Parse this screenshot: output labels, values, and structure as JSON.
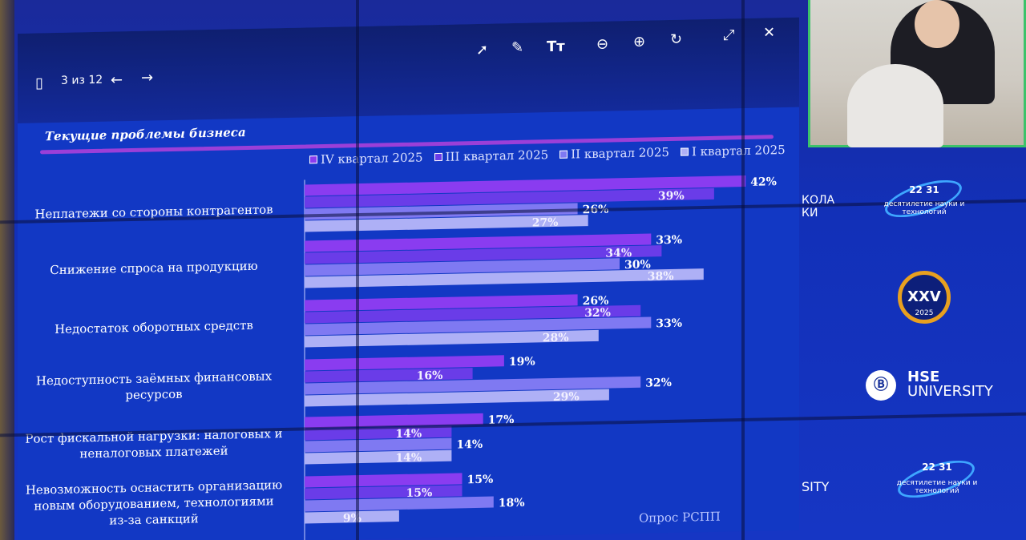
{
  "viewer": {
    "page_indicator": "3 из 12",
    "text_icon": "Tт"
  },
  "slide": {
    "title": "Текущие проблемы бизнеса",
    "source": "Опрос РСПП"
  },
  "legend": [
    {
      "label": "IV квартал 2025",
      "color": "#8a3cf0"
    },
    {
      "label": "III квартал 2025",
      "color": "#6a3ce8"
    },
    {
      "label": "II квартал 2025",
      "color": "#7f79f2"
    },
    {
      "label": "I квартал 2025",
      "color": "#aeb0f6"
    }
  ],
  "chart_data": {
    "type": "bar",
    "orientation": "horizontal",
    "title": "Текущие проблемы бизнеса",
    "categories": [
      "Неплатежи со стороны контрагентов",
      "Снижение спроса на продукцию",
      "Недостаток оборотных средств",
      "Недоступность заёмных финансовых ресурсов",
      "Рост фискальной нагрузки: налоговых и неналоговых платежей",
      "Невозможность оснастить организацию новым оборудованием, технологиями из-за санкций"
    ],
    "category_lines": [
      [
        "Неплатежи со стороны контрагентов"
      ],
      [
        "Снижение спроса на продукцию"
      ],
      [
        "Недостаток оборотных средств"
      ],
      [
        "Недоступность заёмных финансовых",
        "ресурсов"
      ],
      [
        "Рост фискальной нагрузки: налоговых и",
        "неналоговых платежей"
      ],
      [
        "Невозможность оснастить организацию",
        "новым оборудованием, технологиями",
        "из-за санкций"
      ]
    ],
    "series": [
      {
        "name": "IV квартал 2025",
        "values": [
          42,
          33,
          26,
          19,
          17,
          15
        ]
      },
      {
        "name": "III квартал 2025",
        "values": [
          39,
          34,
          32,
          16,
          14,
          15
        ]
      },
      {
        "name": "II квартал 2025",
        "values": [
          26,
          30,
          33,
          32,
          14,
          18
        ]
      },
      {
        "name": "I квартал 2025",
        "values": [
          27,
          38,
          28,
          29,
          14,
          9
        ]
      }
    ],
    "value_suffix": "%",
    "label_inside": [
      [
        false,
        true,
        false,
        true
      ],
      [
        false,
        true,
        false,
        true
      ],
      [
        false,
        true,
        false,
        true
      ],
      [
        false,
        true,
        false,
        true
      ],
      [
        false,
        true,
        false,
        true
      ],
      [
        false,
        true,
        false,
        true
      ]
    ],
    "legend_position": "top",
    "grid": false
  },
  "side_panel": {
    "school_line1": "КОЛА",
    "school_line2": "КИ",
    "decade_top": "22 31",
    "decade_text": "десятилетие науки и технологий",
    "badge_text": "XXV",
    "badge_year": "2025",
    "hse_line1": "HSE",
    "hse_line2": "UNIVERSITY",
    "hse_mark": "Ⓑ",
    "fragment": "SITY"
  }
}
